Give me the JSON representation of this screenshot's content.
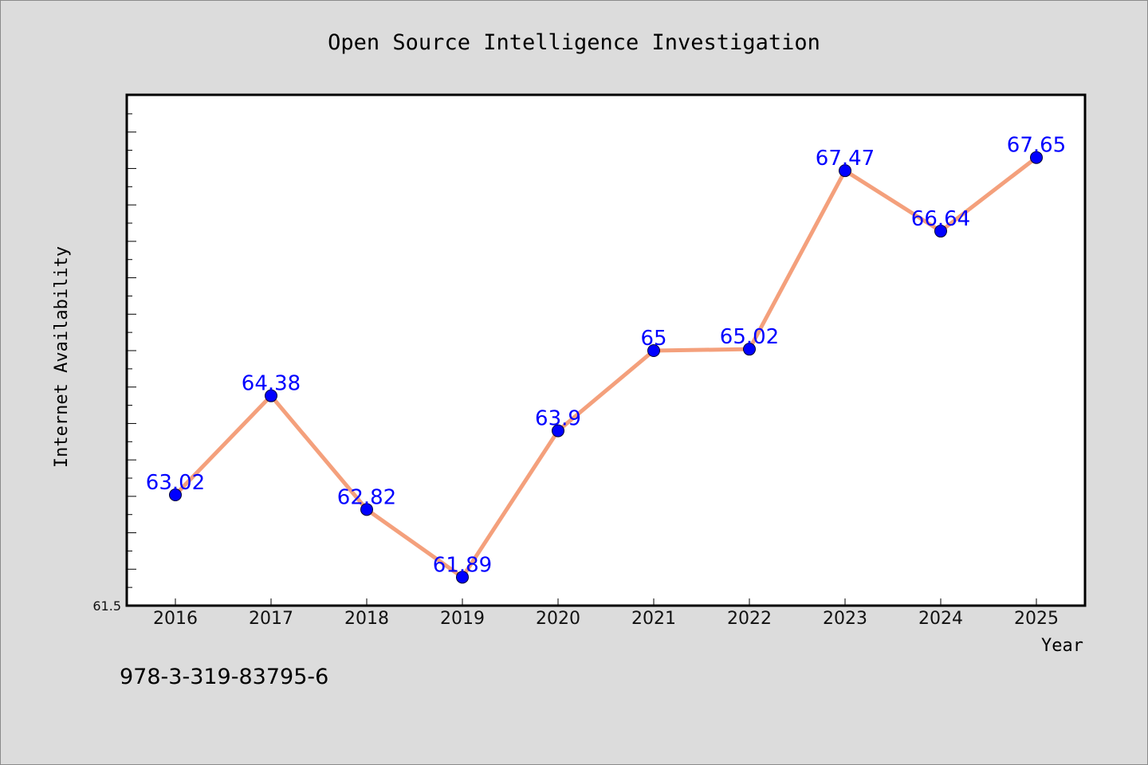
{
  "chart_data": {
    "type": "line",
    "title": "Open Source Intelligence Investigation",
    "xlabel": "Year",
    "ylabel": "Internet Availability",
    "categories": [
      "2016",
      "2017",
      "2018",
      "2019",
      "2020",
      "2021",
      "2022",
      "2023",
      "2024",
      "2025"
    ],
    "values": [
      63.02,
      64.38,
      62.82,
      61.89,
      63.9,
      65,
      65.02,
      67.47,
      66.64,
      67.65
    ],
    "data_labels": [
      "63.02",
      "64.38",
      "62.82",
      "61.89",
      "63.9",
      "65",
      "65.02",
      "67.47",
      "66.64",
      "67.65"
    ],
    "ymin_label": "61.5",
    "ylim": [
      61.5,
      68.5
    ],
    "grid": false,
    "line_color": "#f4a07c",
    "marker_color": "#0000ff",
    "label_color": "#0000ff",
    "plot_background": "#ffffff",
    "figure_background": "#dcdcdc"
  },
  "footnote": "978-3-319-83795-6"
}
